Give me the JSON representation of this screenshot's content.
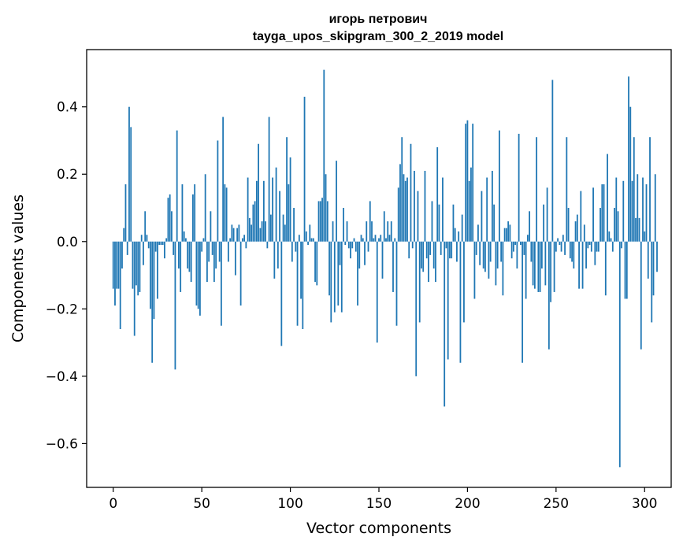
{
  "chart_data": {
    "type": "bar",
    "title_line1": "игорь петрович",
    "title_line2": "tayga_upos_skipgram_300_2_2019 model",
    "xlabel": "Vector components",
    "ylabel": "Components values",
    "xlim": [
      -15,
      315
    ],
    "ylim": [
      -0.73,
      0.57
    ],
    "xticks": [
      0,
      50,
      100,
      150,
      200,
      250,
      300
    ],
    "xtick_labels": [
      "0",
      "50",
      "100",
      "150",
      "200",
      "250",
      "300"
    ],
    "yticks": [
      -0.6,
      -0.4,
      -0.2,
      0.0,
      0.2,
      0.4
    ],
    "ytick_labels": [
      "−0.6",
      "−0.4",
      "−0.2",
      "0.0",
      "0.2",
      "0.4"
    ],
    "grid": false,
    "bar_color": "#1f77b4",
    "values": [
      -0.14,
      -0.19,
      -0.14,
      -0.14,
      -0.26,
      -0.08,
      0.04,
      0.17,
      -0.04,
      0.4,
      0.34,
      -0.14,
      -0.28,
      -0.13,
      -0.16,
      -0.15,
      0.02,
      -0.07,
      0.09,
      0.02,
      -0.02,
      -0.2,
      -0.36,
      -0.23,
      -0.03,
      -0.17,
      -0.01,
      -0.01,
      -0.01,
      -0.05,
      0.01,
      0.13,
      0.14,
      0.09,
      -0.04,
      -0.38,
      0.33,
      -0.08,
      -0.15,
      0.17,
      0.03,
      0.01,
      -0.08,
      -0.09,
      -0.12,
      0.14,
      0.17,
      -0.19,
      -0.2,
      -0.22,
      -0.03,
      0.01,
      0.2,
      -0.12,
      -0.06,
      0.09,
      -0.04,
      -0.12,
      -0.08,
      0.3,
      -0.06,
      -0.25,
      0.37,
      0.17,
      0.16,
      -0.06,
      0.01,
      0.05,
      0.04,
      -0.1,
      0.04,
      0.05,
      -0.19,
      0.01,
      0.02,
      -0.02,
      0.19,
      0.07,
      0.05,
      0.11,
      0.12,
      0.18,
      0.29,
      0.04,
      0.06,
      0.18,
      0.06,
      -0.02,
      0.37,
      0.08,
      0.19,
      -0.11,
      0.22,
      -0.08,
      0.15,
      -0.31,
      0.08,
      0.05,
      0.31,
      0.17,
      0.25,
      -0.06,
      0.1,
      -0.03,
      -0.25,
      0.02,
      -0.17,
      -0.26,
      0.43,
      0.03,
      -0.01,
      0.05,
      0.01,
      0.01,
      -0.12,
      -0.13,
      0.12,
      0.12,
      0.13,
      0.51,
      0.2,
      0.12,
      -0.16,
      -0.24,
      0.06,
      -0.21,
      0.24,
      -0.19,
      -0.07,
      -0.21,
      0.1,
      -0.01,
      0.06,
      -0.02,
      -0.05,
      -0.02,
      0.01,
      -0.03,
      -0.19,
      -0.08,
      0.02,
      0.01,
      -0.07,
      0.06,
      -0.03,
      0.12,
      0.06,
      0.01,
      0.02,
      -0.3,
      0.01,
      0.02,
      -0.11,
      0.09,
      0.01,
      0.06,
      0.02,
      0.06,
      -0.15,
      0.01,
      -0.25,
      0.16,
      0.23,
      0.31,
      0.2,
      0.18,
      0.19,
      -0.05,
      0.29,
      -0.02,
      0.21,
      -0.4,
      0.15,
      -0.24,
      -0.08,
      -0.09,
      0.21,
      -0.05,
      -0.12,
      -0.04,
      0.12,
      -0.08,
      -0.12,
      0.28,
      0.11,
      -0.04,
      0.19,
      -0.49,
      -0.02,
      -0.35,
      -0.05,
      -0.05,
      0.11,
      0.04,
      -0.06,
      0.03,
      -0.36,
      0.08,
      -0.24,
      0.35,
      0.36,
      0.18,
      0.22,
      0.35,
      -0.17,
      -0.04,
      0.05,
      -0.07,
      0.15,
      -0.08,
      -0.09,
      0.19,
      -0.11,
      -0.06,
      0.21,
      0.11,
      -0.13,
      -0.08,
      0.33,
      -0.06,
      -0.16,
      0.04,
      0.04,
      0.06,
      0.05,
      -0.05,
      -0.03,
      -0.01,
      -0.08,
      0.32,
      -0.01,
      -0.36,
      -0.04,
      -0.17,
      0.02,
      0.09,
      -0.06,
      -0.13,
      -0.14,
      0.31,
      -0.15,
      -0.15,
      -0.08,
      0.11,
      -0.13,
      0.16,
      -0.32,
      -0.18,
      0.48,
      -0.15,
      -0.03,
      0.01,
      -0.01,
      -0.03,
      0.02,
      -0.04,
      0.31,
      0.1,
      -0.05,
      -0.06,
      -0.08,
      0.06,
      0.08,
      -0.14,
      0.15,
      -0.14,
      0.05,
      -0.08,
      -0.02,
      -0.01,
      -0.03,
      0.16,
      -0.07,
      -0.03,
      -0.03,
      0.1,
      0.17,
      0.17,
      -0.16,
      0.26,
      0.03,
      0.01,
      -0.03,
      0.1,
      0.19,
      0.09,
      -0.67,
      -0.02,
      0.18,
      -0.17,
      -0.17,
      0.49,
      0.4,
      0.18,
      0.31,
      0.07,
      0.2,
      0.07,
      -0.32,
      0.19,
      0.03,
      0.17,
      -0.11,
      0.31,
      -0.24,
      -0.16,
      0.2,
      -0.09
    ]
  }
}
